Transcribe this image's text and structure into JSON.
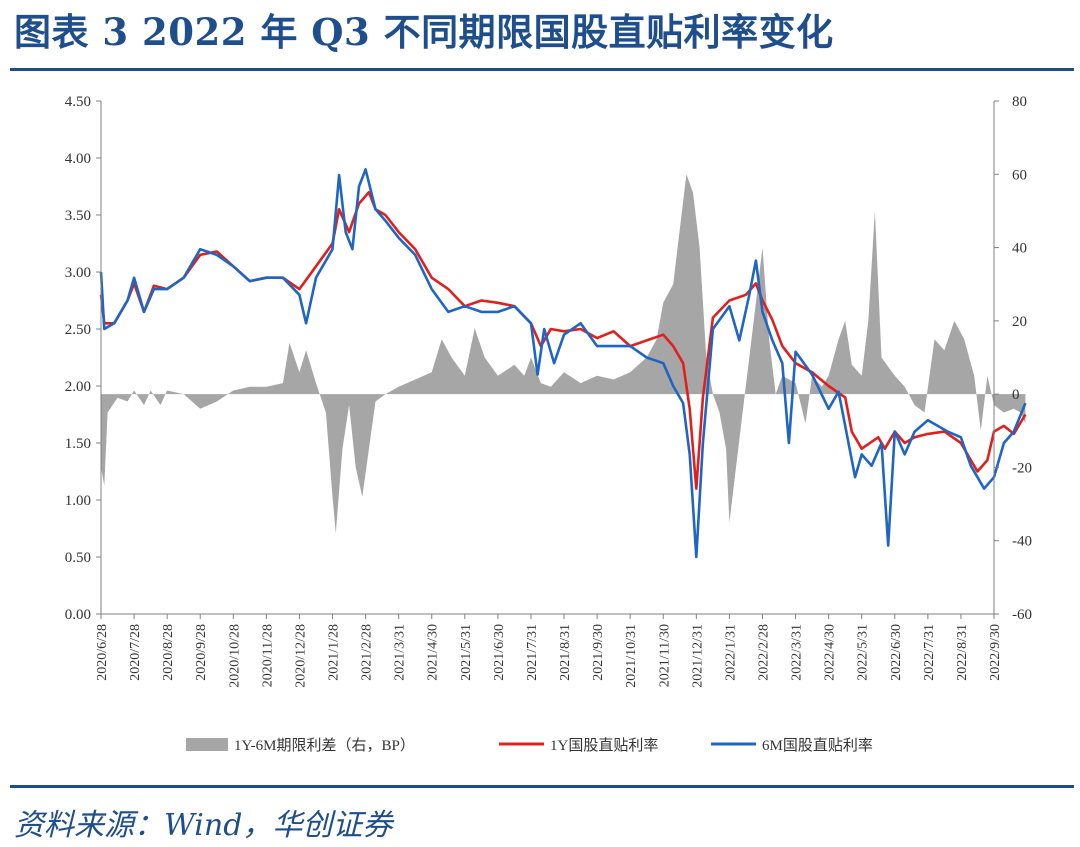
{
  "title": "图表 3   2022 年 Q3 不同期限国股直贴利率变化",
  "source": "资料来源：Wind，华创证券",
  "colors": {
    "title": "#1f4e8c",
    "spread": "#a6a6a6",
    "y1": "#e0201d",
    "m6": "#1f66c4"
  },
  "chart_data": {
    "type": "line",
    "y_left": {
      "ticks": [
        "0.00",
        "0.50",
        "1.00",
        "1.50",
        "2.00",
        "2.50",
        "3.00",
        "3.50",
        "4.00",
        "4.50"
      ],
      "lim": [
        0,
        4.5
      ]
    },
    "y_right": {
      "ticks": [
        "-60",
        "-40",
        "-20",
        "0",
        "20",
        "40",
        "60",
        "80"
      ],
      "lim": [
        -60,
        80
      ]
    },
    "x_ticks": [
      "2020/6/28",
      "2020/7/28",
      "2020/8/28",
      "2020/9/28",
      "2020/10/28",
      "2020/11/28",
      "2020/12/28",
      "2021/1/28",
      "2021/2/28",
      "2021/3/31",
      "2021/4/30",
      "2021/5/31",
      "2021/6/30",
      "2021/7/31",
      "2021/8/31",
      "2021/9/30",
      "2021/10/31",
      "2021/11/30",
      "2021/12/31",
      "2022/1/31",
      "2022/2/28",
      "2022/3/31",
      "2022/4/30",
      "2022/5/31",
      "2022/6/30",
      "2022/7/31",
      "2022/8/31",
      "2022/9/30"
    ],
    "legend": [
      "1Y-6M期限利差（右，BP）",
      "1Y国股直贴利率",
      "6M国股直贴利率"
    ],
    "legend_position": "bottom",
    "grid": false,
    "series": [
      {
        "name": "1Y-6M期限利差（右，BP）",
        "type": "area",
        "axis": "right",
        "points": [
          [
            0,
            -20
          ],
          [
            0.1,
            -25
          ],
          [
            0.2,
            -5
          ],
          [
            0.5,
            -1
          ],
          [
            0.8,
            -2
          ],
          [
            1,
            1
          ],
          [
            1.3,
            -3
          ],
          [
            1.5,
            1
          ],
          [
            1.8,
            -3
          ],
          [
            2,
            1
          ],
          [
            2.5,
            0
          ],
          [
            3,
            -4
          ],
          [
            3.5,
            -2
          ],
          [
            4,
            1
          ],
          [
            4.5,
            2
          ],
          [
            5,
            2
          ],
          [
            5.5,
            3
          ],
          [
            5.7,
            14
          ],
          [
            6,
            6
          ],
          [
            6.2,
            12
          ],
          [
            6.5,
            3
          ],
          [
            6.8,
            -5
          ],
          [
            7,
            -28
          ],
          [
            7.1,
            -38
          ],
          [
            7.3,
            -15
          ],
          [
            7.5,
            -3
          ],
          [
            7.7,
            -20
          ],
          [
            7.9,
            -28
          ],
          [
            8.1,
            -15
          ],
          [
            8.3,
            -2
          ],
          [
            8.6,
            0
          ],
          [
            9,
            2
          ],
          [
            9.5,
            4
          ],
          [
            10,
            6
          ],
          [
            10.3,
            15
          ],
          [
            10.6,
            10
          ],
          [
            11,
            5
          ],
          [
            11.3,
            18
          ],
          [
            11.6,
            10
          ],
          [
            12,
            5
          ],
          [
            12.5,
            8
          ],
          [
            12.8,
            5
          ],
          [
            13,
            10
          ],
          [
            13.3,
            3
          ],
          [
            13.6,
            2
          ],
          [
            14,
            6
          ],
          [
            14.5,
            3
          ],
          [
            15,
            5
          ],
          [
            15.5,
            4
          ],
          [
            16,
            6
          ],
          [
            16.5,
            10
          ],
          [
            16.8,
            15
          ],
          [
            17,
            25
          ],
          [
            17.3,
            30
          ],
          [
            17.5,
            45
          ],
          [
            17.7,
            60
          ],
          [
            17.9,
            55
          ],
          [
            18.1,
            40
          ],
          [
            18.3,
            10
          ],
          [
            18.5,
            0
          ],
          [
            18.7,
            -5
          ],
          [
            18.9,
            -15
          ],
          [
            19,
            -35
          ],
          [
            19.2,
            -20
          ],
          [
            19.4,
            -5
          ],
          [
            19.6,
            10
          ],
          [
            19.8,
            25
          ],
          [
            20,
            40
          ],
          [
            20.2,
            15
          ],
          [
            20.4,
            0
          ],
          [
            20.6,
            5
          ],
          [
            21,
            3
          ],
          [
            21.3,
            -8
          ],
          [
            21.5,
            5
          ],
          [
            21.8,
            2
          ],
          [
            22,
            5
          ],
          [
            22.3,
            15
          ],
          [
            22.5,
            20
          ],
          [
            22.7,
            8
          ],
          [
            23,
            5
          ],
          [
            23.2,
            20
          ],
          [
            23.4,
            50
          ],
          [
            23.6,
            10
          ],
          [
            24,
            5
          ],
          [
            24.3,
            2
          ],
          [
            24.6,
            -3
          ],
          [
            24.9,
            -5
          ],
          [
            25.2,
            15
          ],
          [
            25.5,
            12
          ],
          [
            25.8,
            20
          ],
          [
            26.1,
            15
          ],
          [
            26.4,
            5
          ],
          [
            26.6,
            -10
          ],
          [
            26.8,
            5
          ],
          [
            27,
            -3
          ],
          [
            27.3,
            -5
          ],
          [
            27.6,
            -4
          ],
          [
            27.8,
            -5
          ],
          [
            27.95,
            -8
          ]
        ]
      },
      {
        "name": "1Y国股直贴利率",
        "type": "line",
        "axis": "left",
        "points": [
          [
            0,
            2.8
          ],
          [
            0.1,
            2.55
          ],
          [
            0.4,
            2.55
          ],
          [
            0.8,
            2.75
          ],
          [
            1,
            2.9
          ],
          [
            1.3,
            2.65
          ],
          [
            1.6,
            2.88
          ],
          [
            2,
            2.85
          ],
          [
            2.5,
            2.95
          ],
          [
            3,
            3.15
          ],
          [
            3.5,
            3.18
          ],
          [
            4,
            3.05
          ],
          [
            4.5,
            2.92
          ],
          [
            5,
            2.95
          ],
          [
            5.5,
            2.95
          ],
          [
            6,
            2.85
          ],
          [
            6.5,
            3.05
          ],
          [
            7,
            3.25
          ],
          [
            7.2,
            3.55
          ],
          [
            7.5,
            3.35
          ],
          [
            7.8,
            3.6
          ],
          [
            8.1,
            3.7
          ],
          [
            8.3,
            3.55
          ],
          [
            8.6,
            3.5
          ],
          [
            9,
            3.35
          ],
          [
            9.5,
            3.2
          ],
          [
            10,
            2.95
          ],
          [
            10.5,
            2.85
          ],
          [
            11,
            2.7
          ],
          [
            11.5,
            2.75
          ],
          [
            12,
            2.73
          ],
          [
            12.5,
            2.7
          ],
          [
            13,
            2.55
          ],
          [
            13.3,
            2.35
          ],
          [
            13.6,
            2.5
          ],
          [
            14,
            2.48
          ],
          [
            14.5,
            2.5
          ],
          [
            15,
            2.42
          ],
          [
            15.5,
            2.48
          ],
          [
            16,
            2.35
          ],
          [
            16.5,
            2.4
          ],
          [
            17,
            2.45
          ],
          [
            17.3,
            2.35
          ],
          [
            17.6,
            2.2
          ],
          [
            17.8,
            1.8
          ],
          [
            18,
            1.1
          ],
          [
            18.2,
            1.9
          ],
          [
            18.5,
            2.6
          ],
          [
            19,
            2.75
          ],
          [
            19.5,
            2.8
          ],
          [
            19.8,
            2.9
          ],
          [
            20,
            2.75
          ],
          [
            20.3,
            2.58
          ],
          [
            20.6,
            2.35
          ],
          [
            21,
            2.2
          ],
          [
            21.5,
            2.12
          ],
          [
            22,
            2.0
          ],
          [
            22.5,
            1.9
          ],
          [
            22.7,
            1.6
          ],
          [
            23,
            1.45
          ],
          [
            23.5,
            1.55
          ],
          [
            23.7,
            1.45
          ],
          [
            24,
            1.6
          ],
          [
            24.3,
            1.5
          ],
          [
            24.6,
            1.55
          ],
          [
            25,
            1.58
          ],
          [
            25.5,
            1.6
          ],
          [
            26,
            1.5
          ],
          [
            26.3,
            1.35
          ],
          [
            26.5,
            1.25
          ],
          [
            26.8,
            1.35
          ],
          [
            27,
            1.6
          ],
          [
            27.3,
            1.65
          ],
          [
            27.6,
            1.58
          ],
          [
            27.95,
            1.75
          ]
        ]
      },
      {
        "name": "6M国股直贴利率",
        "type": "line",
        "axis": "left",
        "points": [
          [
            0,
            3.0
          ],
          [
            0.1,
            2.5
          ],
          [
            0.4,
            2.55
          ],
          [
            0.8,
            2.75
          ],
          [
            1,
            2.95
          ],
          [
            1.3,
            2.65
          ],
          [
            1.6,
            2.85
          ],
          [
            2,
            2.85
          ],
          [
            2.5,
            2.95
          ],
          [
            3,
            3.2
          ],
          [
            3.5,
            3.15
          ],
          [
            4,
            3.05
          ],
          [
            4.5,
            2.92
          ],
          [
            5,
            2.95
          ],
          [
            5.5,
            2.95
          ],
          [
            6,
            2.8
          ],
          [
            6.2,
            2.55
          ],
          [
            6.5,
            2.95
          ],
          [
            7,
            3.2
          ],
          [
            7.2,
            3.85
          ],
          [
            7.4,
            3.35
          ],
          [
            7.6,
            3.2
          ],
          [
            7.8,
            3.75
          ],
          [
            8,
            3.9
          ],
          [
            8.3,
            3.55
          ],
          [
            8.6,
            3.45
          ],
          [
            9,
            3.3
          ],
          [
            9.5,
            3.15
          ],
          [
            10,
            2.85
          ],
          [
            10.5,
            2.65
          ],
          [
            11,
            2.7
          ],
          [
            11.5,
            2.65
          ],
          [
            12,
            2.65
          ],
          [
            12.5,
            2.7
          ],
          [
            13,
            2.55
          ],
          [
            13.2,
            2.1
          ],
          [
            13.4,
            2.5
          ],
          [
            13.7,
            2.2
          ],
          [
            14,
            2.45
          ],
          [
            14.5,
            2.55
          ],
          [
            15,
            2.35
          ],
          [
            15.5,
            2.35
          ],
          [
            16,
            2.35
          ],
          [
            16.5,
            2.25
          ],
          [
            17,
            2.2
          ],
          [
            17.3,
            2.0
          ],
          [
            17.6,
            1.85
          ],
          [
            17.8,
            1.4
          ],
          [
            18,
            0.5
          ],
          [
            18.2,
            1.5
          ],
          [
            18.5,
            2.5
          ],
          [
            19,
            2.7
          ],
          [
            19.3,
            2.4
          ],
          [
            19.6,
            2.8
          ],
          [
            19.8,
            3.1
          ],
          [
            20,
            2.65
          ],
          [
            20.3,
            2.4
          ],
          [
            20.6,
            2.2
          ],
          [
            20.8,
            1.5
          ],
          [
            21,
            2.3
          ],
          [
            21.5,
            2.1
          ],
          [
            22,
            1.8
          ],
          [
            22.3,
            1.95
          ],
          [
            22.6,
            1.5
          ],
          [
            22.8,
            1.2
          ],
          [
            23,
            1.4
          ],
          [
            23.3,
            1.3
          ],
          [
            23.6,
            1.5
          ],
          [
            23.8,
            0.6
          ],
          [
            24,
            1.6
          ],
          [
            24.3,
            1.4
          ],
          [
            24.6,
            1.6
          ],
          [
            25,
            1.7
          ],
          [
            25.3,
            1.65
          ],
          [
            25.6,
            1.6
          ],
          [
            26,
            1.55
          ],
          [
            26.3,
            1.3
          ],
          [
            26.5,
            1.2
          ],
          [
            26.7,
            1.1
          ],
          [
            27,
            1.2
          ],
          [
            27.3,
            1.5
          ],
          [
            27.6,
            1.6
          ],
          [
            27.95,
            1.85
          ]
        ]
      }
    ]
  }
}
